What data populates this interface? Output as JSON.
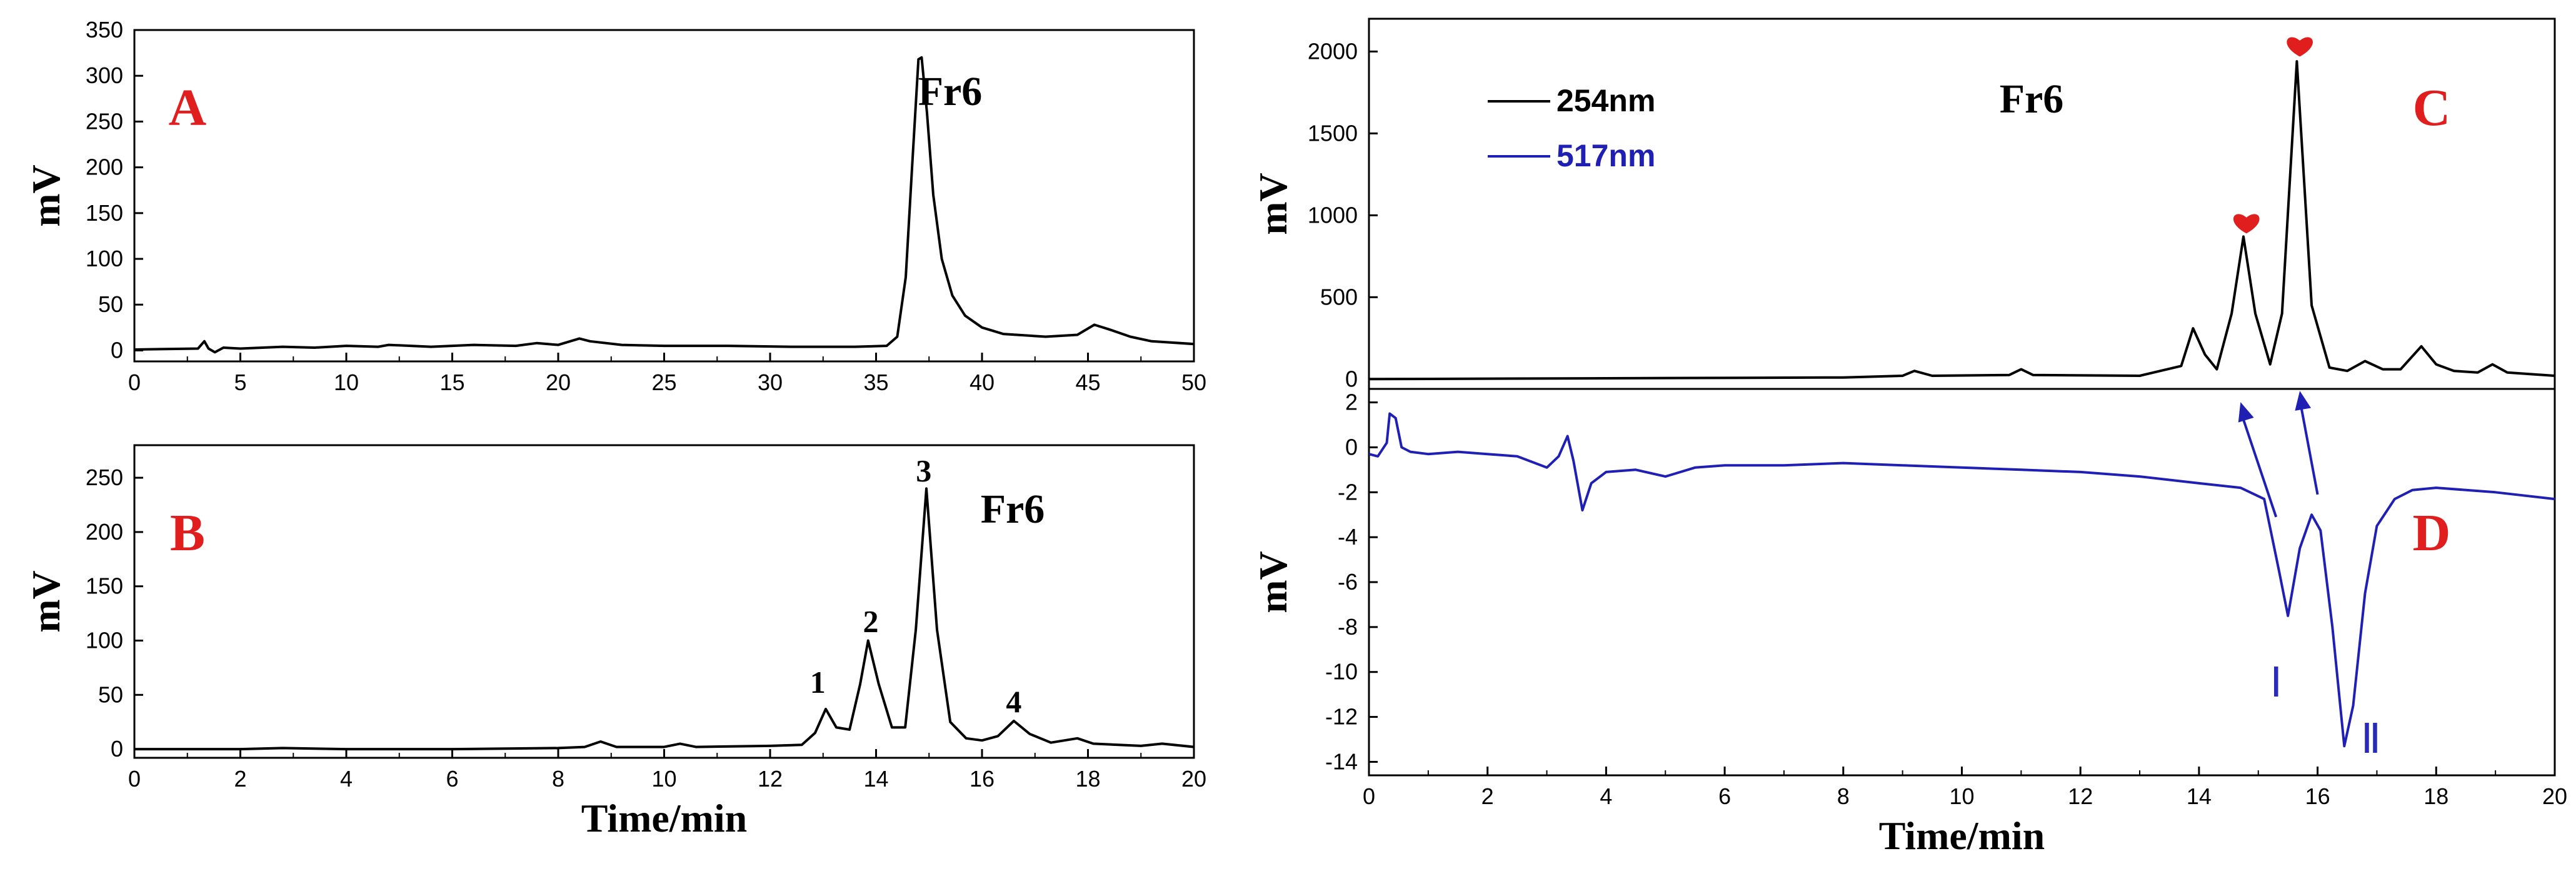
{
  "colors": {
    "trace_black": "#000000",
    "trace_blue": "#1f1fb4",
    "accent_red": "#e01e1e",
    "heart": "#e01e1e"
  },
  "chart_data": [
    {
      "id": "A",
      "type": "line",
      "panel_label": "A",
      "annotation": "Fr6",
      "xlabel": "",
      "ylabel": "mV",
      "xlim": [
        0,
        50
      ],
      "ylim": [
        -12,
        350
      ],
      "xticks": [
        "0",
        "5",
        "10",
        "15",
        "20",
        "25",
        "30",
        "35",
        "40",
        "45",
        "50"
      ],
      "yticks": [
        "0",
        "50",
        "100",
        "150",
        "200",
        "250",
        "300",
        "350"
      ],
      "series": [
        {
          "name": "Fr6",
          "color": "#000000",
          "points": [
            [
              0,
              1
            ],
            [
              3,
              2
            ],
            [
              3.3,
              10
            ],
            [
              3.5,
              2
            ],
            [
              3.8,
              -2
            ],
            [
              4.2,
              3
            ],
            [
              5,
              2
            ],
            [
              7,
              4
            ],
            [
              8.5,
              3
            ],
            [
              10,
              5
            ],
            [
              11.5,
              4
            ],
            [
              12,
              6
            ],
            [
              14,
              4
            ],
            [
              16,
              6
            ],
            [
              18,
              5
            ],
            [
              19,
              8
            ],
            [
              20,
              6
            ],
            [
              21,
              13
            ],
            [
              21.5,
              10
            ],
            [
              23,
              6
            ],
            [
              25,
              5
            ],
            [
              28,
              5
            ],
            [
              31,
              4
            ],
            [
              34,
              4
            ],
            [
              35.5,
              5
            ],
            [
              36,
              15
            ],
            [
              36.4,
              80
            ],
            [
              36.7,
              200
            ],
            [
              37,
              318
            ],
            [
              37.15,
              320
            ],
            [
              37.4,
              260
            ],
            [
              37.7,
              170
            ],
            [
              38.1,
              100
            ],
            [
              38.6,
              60
            ],
            [
              39.2,
              38
            ],
            [
              40,
              25
            ],
            [
              41,
              18
            ],
            [
              43,
              15
            ],
            [
              44.5,
              17
            ],
            [
              45.3,
              28
            ],
            [
              46,
              23
            ],
            [
              47,
              15
            ],
            [
              48,
              10
            ],
            [
              50,
              7
            ]
          ]
        }
      ]
    },
    {
      "id": "B",
      "type": "line",
      "panel_label": "B",
      "annotation": "Fr6",
      "xlabel": "Time/min",
      "ylabel": "mV",
      "xlim": [
        0,
        20
      ],
      "ylim": [
        -8,
        280
      ],
      "xticks": [
        "0",
        "2",
        "4",
        "6",
        "8",
        "10",
        "12",
        "14",
        "16",
        "18",
        "20"
      ],
      "yticks": [
        "0",
        "50",
        "100",
        "150",
        "200",
        "250"
      ],
      "peak_labels": [
        {
          "x": 12.9,
          "y": 52,
          "text": "1"
        },
        {
          "x": 13.9,
          "y": 108,
          "text": "2"
        },
        {
          "x": 14.9,
          "y": 247,
          "text": "3"
        },
        {
          "x": 16.6,
          "y": 34,
          "text": "4"
        }
      ],
      "series": [
        {
          "name": "Fr6",
          "color": "#000000",
          "points": [
            [
              0,
              0
            ],
            [
              2,
              0
            ],
            [
              2.8,
              1
            ],
            [
              4,
              0
            ],
            [
              6,
              0
            ],
            [
              8,
              1
            ],
            [
              8.5,
              2
            ],
            [
              8.8,
              7
            ],
            [
              9.1,
              2
            ],
            [
              10,
              2
            ],
            [
              10.3,
              5
            ],
            [
              10.6,
              2
            ],
            [
              12,
              3
            ],
            [
              12.6,
              4
            ],
            [
              12.85,
              15
            ],
            [
              13.05,
              37
            ],
            [
              13.25,
              20
            ],
            [
              13.5,
              18
            ],
            [
              13.7,
              60
            ],
            [
              13.85,
              100
            ],
            [
              14.05,
              60
            ],
            [
              14.3,
              20
            ],
            [
              14.55,
              20
            ],
            [
              14.75,
              110
            ],
            [
              14.95,
              240
            ],
            [
              15.15,
              110
            ],
            [
              15.4,
              25
            ],
            [
              15.7,
              10
            ],
            [
              16,
              8
            ],
            [
              16.3,
              12
            ],
            [
              16.6,
              26
            ],
            [
              16.9,
              14
            ],
            [
              17.3,
              6
            ],
            [
              17.8,
              10
            ],
            [
              18.1,
              5
            ],
            [
              19,
              3
            ],
            [
              19.4,
              5
            ],
            [
              20,
              2
            ]
          ]
        }
      ]
    },
    {
      "id": "C",
      "type": "line",
      "panel_label": "C",
      "annotation": "Fr6",
      "xlabel": "",
      "ylabel": "mV",
      "xlim": [
        0,
        20
      ],
      "ylim": [
        -60,
        2200
      ],
      "xticks": [],
      "yticks": [
        "0",
        "500",
        "1000",
        "1500",
        "2000"
      ],
      "legend": [
        {
          "label": "254nm",
          "color": "#000000"
        },
        {
          "label": "517nm",
          "color": "#1f1fb4"
        }
      ],
      "heart_markers": [
        {
          "x": 14.8,
          "y": 950
        },
        {
          "x": 15.7,
          "y": 2030
        }
      ],
      "series": [
        {
          "name": "254nm",
          "color": "#000000",
          "points": [
            [
              0,
              0
            ],
            [
              4,
              5
            ],
            [
              8,
              10
            ],
            [
              9,
              20
            ],
            [
              9.2,
              50
            ],
            [
              9.5,
              20
            ],
            [
              10.8,
              25
            ],
            [
              11,
              60
            ],
            [
              11.2,
              25
            ],
            [
              13,
              20
            ],
            [
              13.7,
              80
            ],
            [
              13.9,
              310
            ],
            [
              14.1,
              150
            ],
            [
              14.3,
              60
            ],
            [
              14.55,
              400
            ],
            [
              14.75,
              870
            ],
            [
              14.95,
              400
            ],
            [
              15.2,
              90
            ],
            [
              15.4,
              400
            ],
            [
              15.65,
              1940
            ],
            [
              15.9,
              450
            ],
            [
              16.2,
              70
            ],
            [
              16.5,
              50
            ],
            [
              16.8,
              110
            ],
            [
              17.1,
              60
            ],
            [
              17.4,
              60
            ],
            [
              17.75,
              200
            ],
            [
              18,
              90
            ],
            [
              18.3,
              50
            ],
            [
              18.7,
              40
            ],
            [
              18.95,
              90
            ],
            [
              19.2,
              40
            ],
            [
              20,
              20
            ]
          ]
        }
      ]
    },
    {
      "id": "D",
      "type": "line",
      "panel_label": "D",
      "annotation": "",
      "xlabel": "Time/min",
      "ylabel": "mV",
      "xlim": [
        0,
        20
      ],
      "ylim": [
        -14.6,
        2.6
      ],
      "xticks": [
        "0",
        "2",
        "4",
        "6",
        "8",
        "10",
        "12",
        "14",
        "16",
        "18",
        "20"
      ],
      "yticks": [
        "2",
        "0",
        "-2",
        "-4",
        "-6",
        "-8",
        "-10",
        "-12",
        "-14"
      ],
      "roman_labels": [
        {
          "x": 15.3,
          "y": -11.1,
          "text": "Ⅰ"
        },
        {
          "x": 16.9,
          "y": -13.6,
          "text": "Ⅱ"
        }
      ],
      "arrows": [
        {
          "from": [
            15.3,
            -3.1
          ],
          "to": [
            14.7,
            0.9
          ]
        },
        {
          "from": [
            16.0,
            -2.1
          ],
          "to": [
            15.7,
            1.4
          ]
        }
      ],
      "series": [
        {
          "name": "517nm",
          "color": "#1f1fb4",
          "points": [
            [
              0,
              -0.3
            ],
            [
              0.15,
              -0.4
            ],
            [
              0.3,
              0.2
            ],
            [
              0.35,
              1.5
            ],
            [
              0.45,
              1.3
            ],
            [
              0.55,
              0
            ],
            [
              0.7,
              -0.2
            ],
            [
              1,
              -0.3
            ],
            [
              1.5,
              -0.2
            ],
            [
              2,
              -0.3
            ],
            [
              2.5,
              -0.4
            ],
            [
              3,
              -0.9
            ],
            [
              3.2,
              -0.4
            ],
            [
              3.35,
              0.5
            ],
            [
              3.45,
              -0.6
            ],
            [
              3.6,
              -2.8
            ],
            [
              3.75,
              -1.6
            ],
            [
              4,
              -1.1
            ],
            [
              4.5,
              -1.0
            ],
            [
              5,
              -1.3
            ],
            [
              5.5,
              -0.9
            ],
            [
              6,
              -0.8
            ],
            [
              7,
              -0.8
            ],
            [
              8,
              -0.7
            ],
            [
              9,
              -0.8
            ],
            [
              10,
              -0.9
            ],
            [
              11,
              -1.0
            ],
            [
              12,
              -1.1
            ],
            [
              13,
              -1.3
            ],
            [
              14,
              -1.6
            ],
            [
              14.7,
              -1.8
            ],
            [
              15.1,
              -2.3
            ],
            [
              15.35,
              -5.5
            ],
            [
              15.5,
              -7.5
            ],
            [
              15.7,
              -4.5
            ],
            [
              15.9,
              -3.0
            ],
            [
              16.05,
              -3.7
            ],
            [
              16.25,
              -8.0
            ],
            [
              16.45,
              -13.3
            ],
            [
              16.6,
              -11.5
            ],
            [
              16.8,
              -6.5
            ],
            [
              17.0,
              -3.5
            ],
            [
              17.3,
              -2.3
            ],
            [
              17.6,
              -1.9
            ],
            [
              18,
              -1.8
            ],
            [
              19,
              -2.0
            ],
            [
              20,
              -2.3
            ]
          ]
        }
      ]
    }
  ]
}
